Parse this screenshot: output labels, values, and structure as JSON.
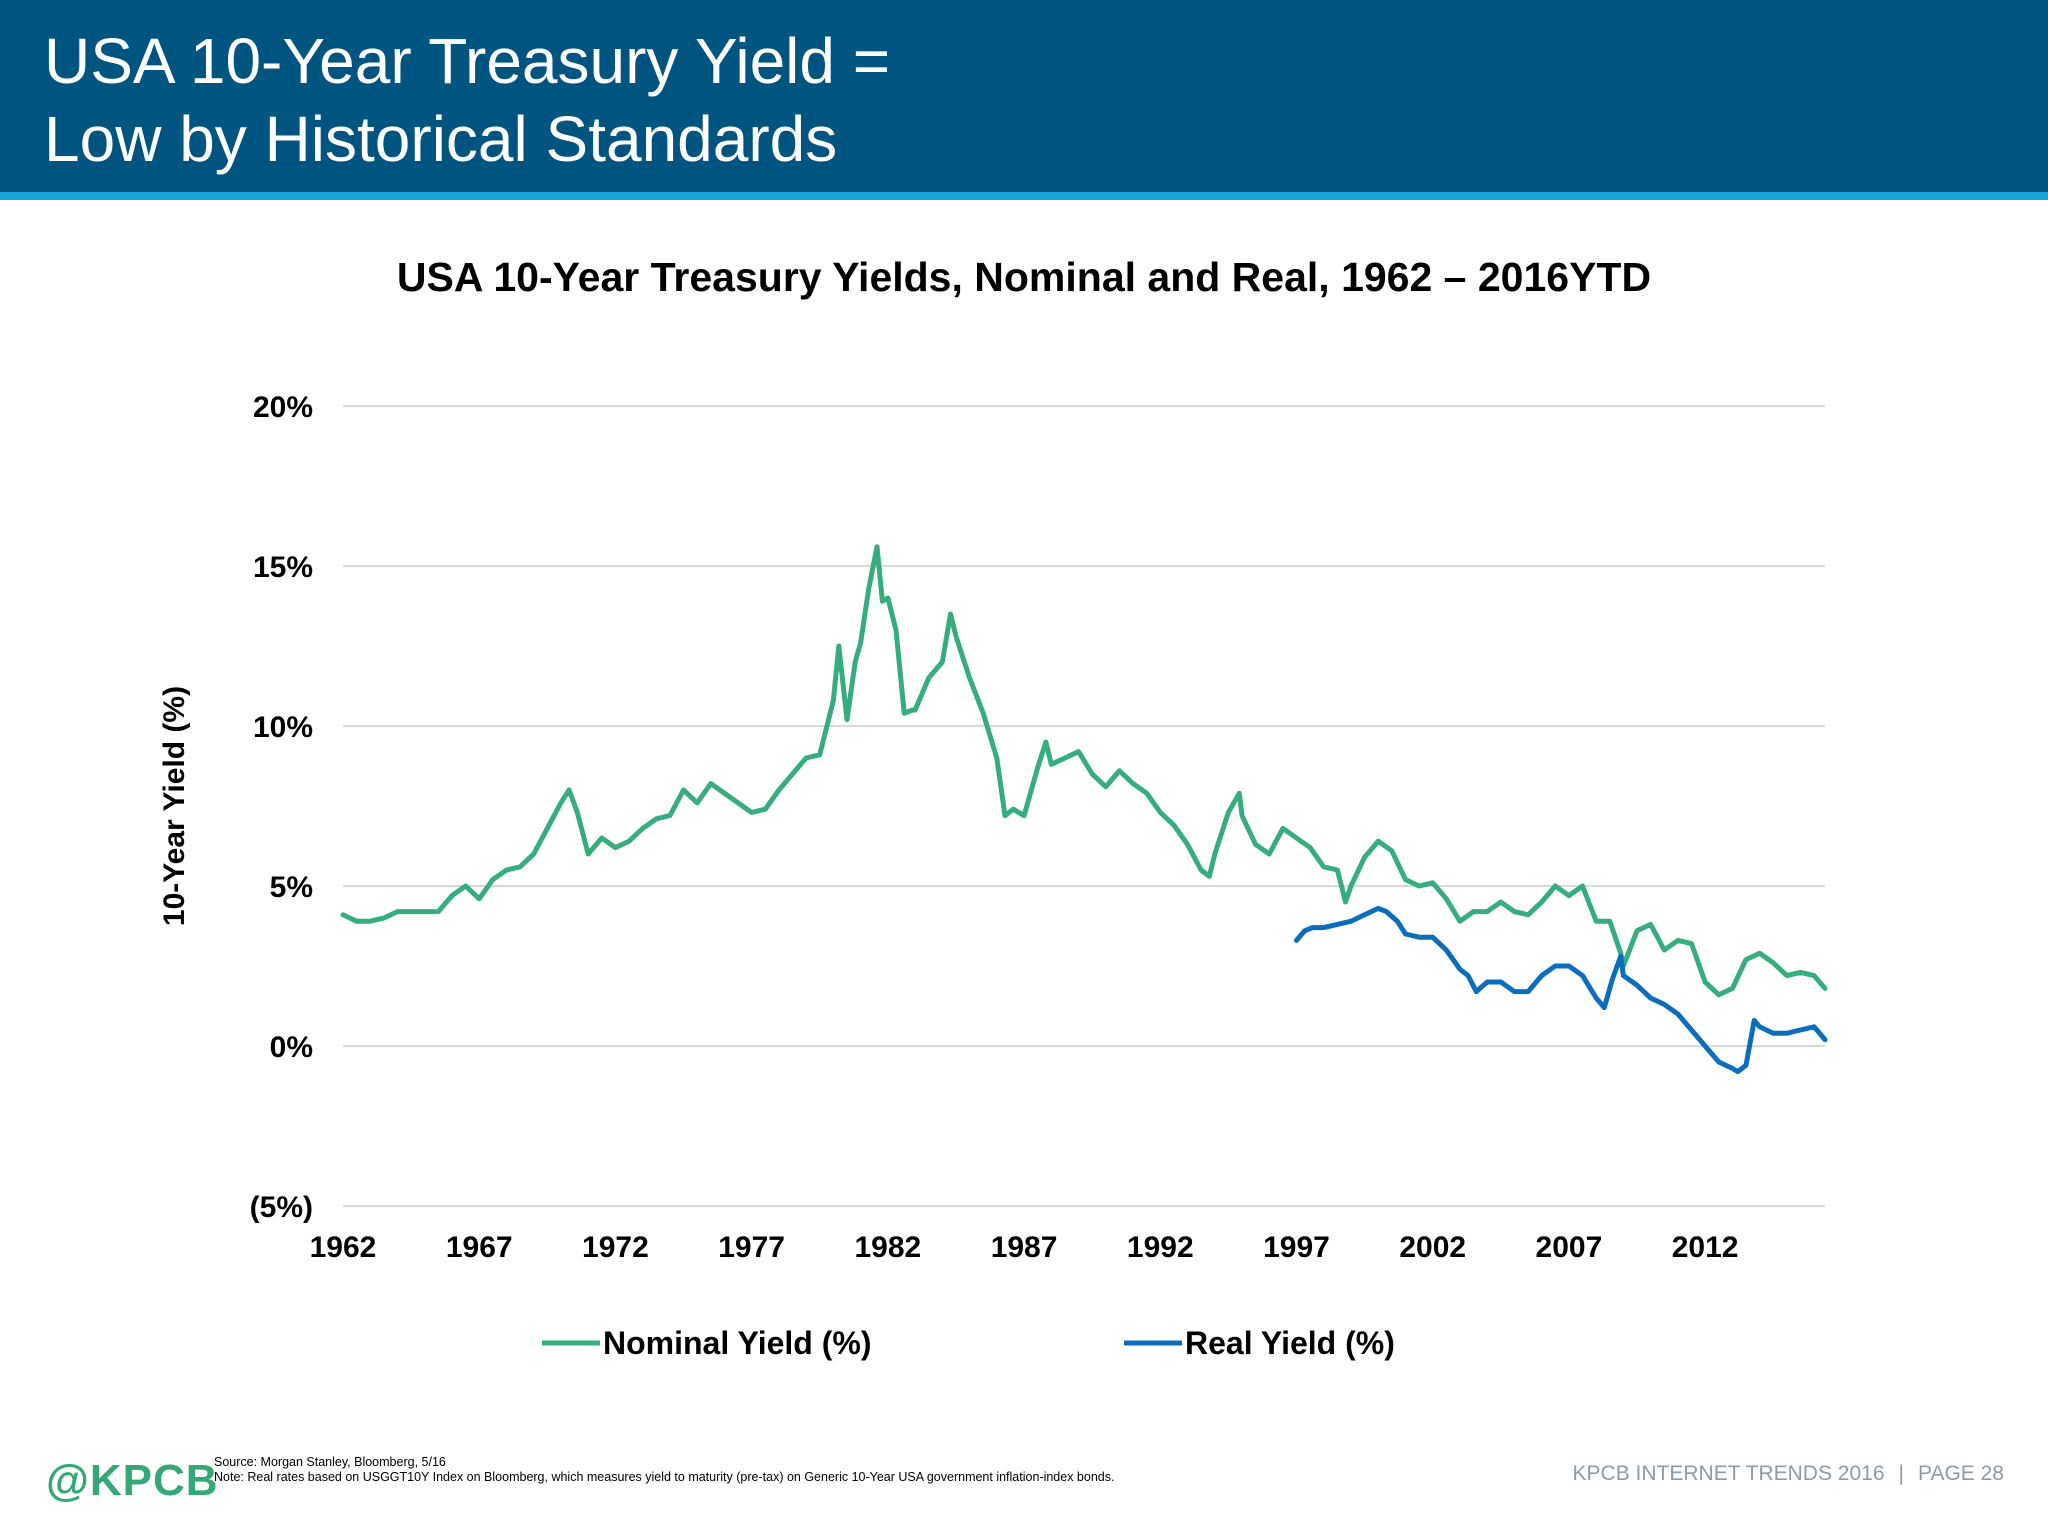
{
  "slide": {
    "title_line1": "USA 10-Year Treasury Yield =",
    "title_line2": "Low by Historical Standards"
  },
  "footer": {
    "logo": "@KPCB",
    "source": "Source: Morgan Stanley, Bloomberg, 5/16",
    "note": "Note: Real rates based on USGGT10Y Index on Bloomberg, which measures yield to maturity (pre-tax) on Generic 10-Year USA government inflation-index bonds.",
    "report": "KPCB INTERNET TRENDS 2016",
    "separator": "|",
    "page": "PAGE 28"
  },
  "colors": {
    "header_bg": "#005580",
    "header_stripe": "#1aa3d6",
    "nominal": "#35ad7e",
    "real": "#0a6ebd",
    "grid": "#d9d9d9"
  },
  "chart_data": {
    "type": "line",
    "title": "USA 10-Year Treasury Yields, Nominal and Real, 1962 – 2016YTD",
    "xlabel": "",
    "ylabel": "10-Year Yield (%)",
    "xlim": [
      1962,
      2016.4
    ],
    "ylim": [
      -5,
      20
    ],
    "x_ticks": [
      1962,
      1967,
      1972,
      1977,
      1982,
      1987,
      1992,
      1997,
      2002,
      2007,
      2012
    ],
    "x_tick_labels": [
      "1962",
      "1967",
      "1972",
      "1977",
      "1982",
      "1987",
      "1992",
      "1997",
      "2002",
      "2007",
      "2012"
    ],
    "y_ticks": [
      -5,
      0,
      5,
      10,
      15,
      20
    ],
    "y_tick_labels": [
      "(5%)",
      "0%",
      "5%",
      "10%",
      "15%",
      "20%"
    ],
    "grid": true,
    "legend_position": "bottom",
    "series": [
      {
        "name": "Nominal Yield (%)",
        "x": [
          1962.0,
          1962.5,
          1963.0,
          1963.5,
          1964.0,
          1964.5,
          1965.0,
          1965.5,
          1966.0,
          1966.5,
          1967.0,
          1967.5,
          1968.0,
          1968.5,
          1969.0,
          1969.5,
          1970.0,
          1970.3,
          1970.6,
          1971.0,
          1971.5,
          1972.0,
          1972.5,
          1973.0,
          1973.5,
          1974.0,
          1974.5,
          1975.0,
          1975.5,
          1976.0,
          1976.5,
          1977.0,
          1977.5,
          1978.0,
          1978.5,
          1979.0,
          1979.5,
          1980.0,
          1980.2,
          1980.5,
          1980.8,
          1981.0,
          1981.3,
          1981.6,
          1981.8,
          1982.0,
          1982.3,
          1982.6,
          1982.9,
          1983.0,
          1983.5,
          1984.0,
          1984.3,
          1984.5,
          1985.0,
          1985.5,
          1986.0,
          1986.3,
          1986.6,
          1987.0,
          1987.5,
          1987.8,
          1988.0,
          1988.5,
          1989.0,
          1989.5,
          1990.0,
          1990.5,
          1991.0,
          1991.5,
          1992.0,
          1992.5,
          1993.0,
          1993.5,
          1993.8,
          1994.0,
          1994.5,
          1994.9,
          1995.0,
          1995.5,
          1996.0,
          1996.5,
          1997.0,
          1997.5,
          1998.0,
          1998.5,
          1998.8,
          1999.0,
          1999.5,
          2000.0,
          2000.5,
          2001.0,
          2001.5,
          2002.0,
          2002.5,
          2003.0,
          2003.5,
          2004.0,
          2004.5,
          2005.0,
          2005.5,
          2006.0,
          2006.5,
          2007.0,
          2007.5,
          2008.0,
          2008.5,
          2008.9,
          2009.0,
          2009.5,
          2010.0,
          2010.5,
          2011.0,
          2011.5,
          2012.0,
          2012.5,
          2013.0,
          2013.5,
          2014.0,
          2014.5,
          2015.0,
          2015.5,
          2016.0,
          2016.4
        ],
        "values": [
          4.1,
          3.9,
          3.9,
          4.0,
          4.2,
          4.2,
          4.2,
          4.2,
          4.7,
          5.0,
          4.6,
          5.2,
          5.5,
          5.6,
          6.0,
          6.8,
          7.6,
          8.0,
          7.3,
          6.0,
          6.5,
          6.2,
          6.4,
          6.8,
          7.1,
          7.2,
          8.0,
          7.6,
          8.2,
          7.9,
          7.6,
          7.3,
          7.4,
          8.0,
          8.5,
          9.0,
          9.1,
          10.8,
          12.5,
          10.2,
          12.0,
          12.6,
          14.3,
          15.6,
          13.9,
          14.0,
          13.0,
          10.4,
          10.5,
          10.5,
          11.5,
          12.0,
          13.5,
          12.8,
          11.5,
          10.4,
          9.0,
          7.2,
          7.4,
          7.2,
          8.7,
          9.5,
          8.8,
          9.0,
          9.2,
          8.5,
          8.1,
          8.6,
          8.2,
          7.9,
          7.3,
          6.9,
          6.3,
          5.5,
          5.3,
          6.0,
          7.3,
          7.9,
          7.2,
          6.3,
          6.0,
          6.8,
          6.5,
          6.2,
          5.6,
          5.5,
          4.5,
          5.0,
          5.9,
          6.4,
          6.1,
          5.2,
          5.0,
          5.1,
          4.6,
          3.9,
          4.2,
          4.2,
          4.5,
          4.2,
          4.1,
          4.5,
          5.0,
          4.7,
          5.0,
          3.9,
          3.9,
          2.9,
          2.5,
          3.6,
          3.8,
          3.0,
          3.3,
          3.2,
          2.0,
          1.6,
          1.8,
          2.7,
          2.9,
          2.6,
          2.2,
          2.3,
          2.2,
          1.8
        ]
      },
      {
        "name": "Real Yield (%)",
        "x": [
          1997.0,
          1997.3,
          1997.6,
          1998.0,
          1998.5,
          1999.0,
          1999.5,
          2000.0,
          2000.3,
          2000.7,
          2001.0,
          2001.5,
          2002.0,
          2002.5,
          2003.0,
          2003.3,
          2003.6,
          2004.0,
          2004.5,
          2005.0,
          2005.5,
          2006.0,
          2006.5,
          2007.0,
          2007.5,
          2008.0,
          2008.3,
          2008.6,
          2008.9,
          2009.0,
          2009.5,
          2010.0,
          2010.5,
          2011.0,
          2011.5,
          2012.0,
          2012.5,
          2013.0,
          2013.2,
          2013.5,
          2013.8,
          2014.0,
          2014.5,
          2015.0,
          2015.5,
          2016.0,
          2016.4
        ],
        "values": [
          3.3,
          3.6,
          3.7,
          3.7,
          3.8,
          3.9,
          4.1,
          4.3,
          4.2,
          3.9,
          3.5,
          3.4,
          3.4,
          3.0,
          2.4,
          2.2,
          1.7,
          2.0,
          2.0,
          1.7,
          1.7,
          2.2,
          2.5,
          2.5,
          2.2,
          1.5,
          1.2,
          2.1,
          2.8,
          2.2,
          1.9,
          1.5,
          1.3,
          1.0,
          0.5,
          0.0,
          -0.5,
          -0.7,
          -0.8,
          -0.6,
          0.8,
          0.6,
          0.4,
          0.4,
          0.5,
          0.6,
          0.2
        ]
      }
    ]
  }
}
